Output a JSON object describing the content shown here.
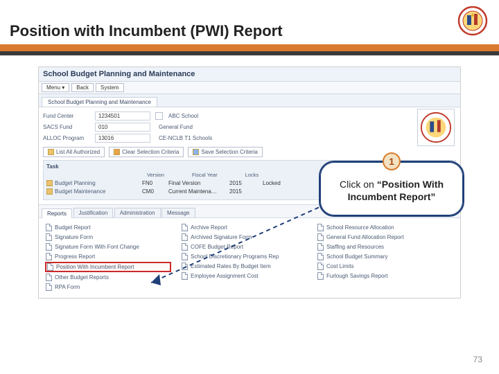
{
  "slide": {
    "title": "Position with Incumbent (PWI) Report",
    "page_number": "73"
  },
  "colors": {
    "orange": "#d97b2e",
    "dark": "#3a3a3a",
    "callout_border": "#1f3f78",
    "highlight": "#cc2a2a",
    "step_bg": "#f2e2c2",
    "step_border": "#d87b2a"
  },
  "app": {
    "title": "School Budget Planning and Maintenance",
    "menubar": [
      "Menu ▾",
      "Back",
      "System"
    ],
    "main_tab": "School Budget Planning and Maintenance",
    "fields": {
      "fund_center": {
        "label": "Fund Center",
        "value": "1234501",
        "after": "ABC School"
      },
      "sacs_fund": {
        "label": "SACS Fund",
        "value": "010",
        "after": "General Fund"
      },
      "alloc_program": {
        "label": "ALLOC Program",
        "value": "13016",
        "after": "CE-NCLB T1 Schools"
      }
    },
    "actions": {
      "list_all": "List All Authorized",
      "clear": "Clear Selection Criteria",
      "save": "Save Selection Criteria"
    },
    "task_section": {
      "title": "Task",
      "headers": [
        "Version",
        "Fiscal Year",
        "Locks"
      ],
      "rows": [
        {
          "link": "Budget Planning",
          "version_code": "FN0",
          "version": "Final Version",
          "year": "2015",
          "lock": "Locked"
        },
        {
          "link": "Budget Maintenance",
          "version_code": "CM0",
          "version": "Current Maintena…",
          "year": "2015",
          "lock": ""
        }
      ]
    },
    "report_tabs": [
      "Reports",
      "Justification",
      "Administration",
      "Message"
    ],
    "reports": {
      "col1": [
        "Budget Report",
        "Signature Form",
        "Signature Form With Font Change",
        "Progress Report",
        "Position With Incumbent Report",
        "Other Budget Reports",
        "RPA Form"
      ],
      "col2": [
        "Archive Report",
        "Archived Signature Form",
        "COFE Budget Report",
        "School Discretionary Programs Rep",
        "Estimated Rates By Budget Item",
        "Employee Assignment Cost"
      ],
      "col3": [
        "School Resource Allocation",
        "General Fund Allocation Report",
        "Staffing and Resources",
        "School Budget Summary",
        "Cost Limits",
        "Furlough Savings Report"
      ]
    },
    "highlight_report": "Position With Incumbent Report"
  },
  "callout": {
    "step": "1",
    "prefix": "Click on ",
    "quoted": "“Position With Incumbent Report”"
  }
}
